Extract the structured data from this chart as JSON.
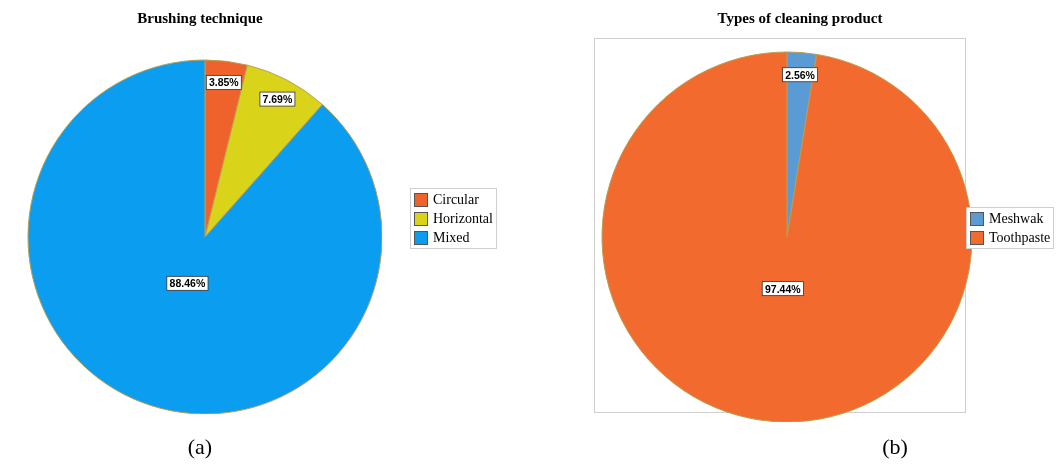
{
  "chart_data": [
    {
      "type": "pie",
      "title": "Brushing technique",
      "categories": [
        "Circular",
        "Horizontal",
        "Mixed"
      ],
      "values": [
        3.85,
        7.69,
        88.46
      ],
      "colors": [
        "#f0622b",
        "#d9d41a",
        "#0b9df0"
      ],
      "value_labels": [
        "3.85%",
        "7.69%",
        "88.46%"
      ],
      "legend": "right",
      "annotations": [
        "(a)"
      ]
    },
    {
      "type": "pie",
      "title": "Types of cleaning product",
      "categories": [
        "Meshwak",
        "Toothpaste"
      ],
      "values": [
        2.56,
        97.44
      ],
      "colors": [
        "#5b9bd5",
        "#f26a2e"
      ],
      "value_labels": [
        "2.56%",
        "97.44%"
      ],
      "legend": "right",
      "annotations": [
        "(b)"
      ]
    }
  ]
}
